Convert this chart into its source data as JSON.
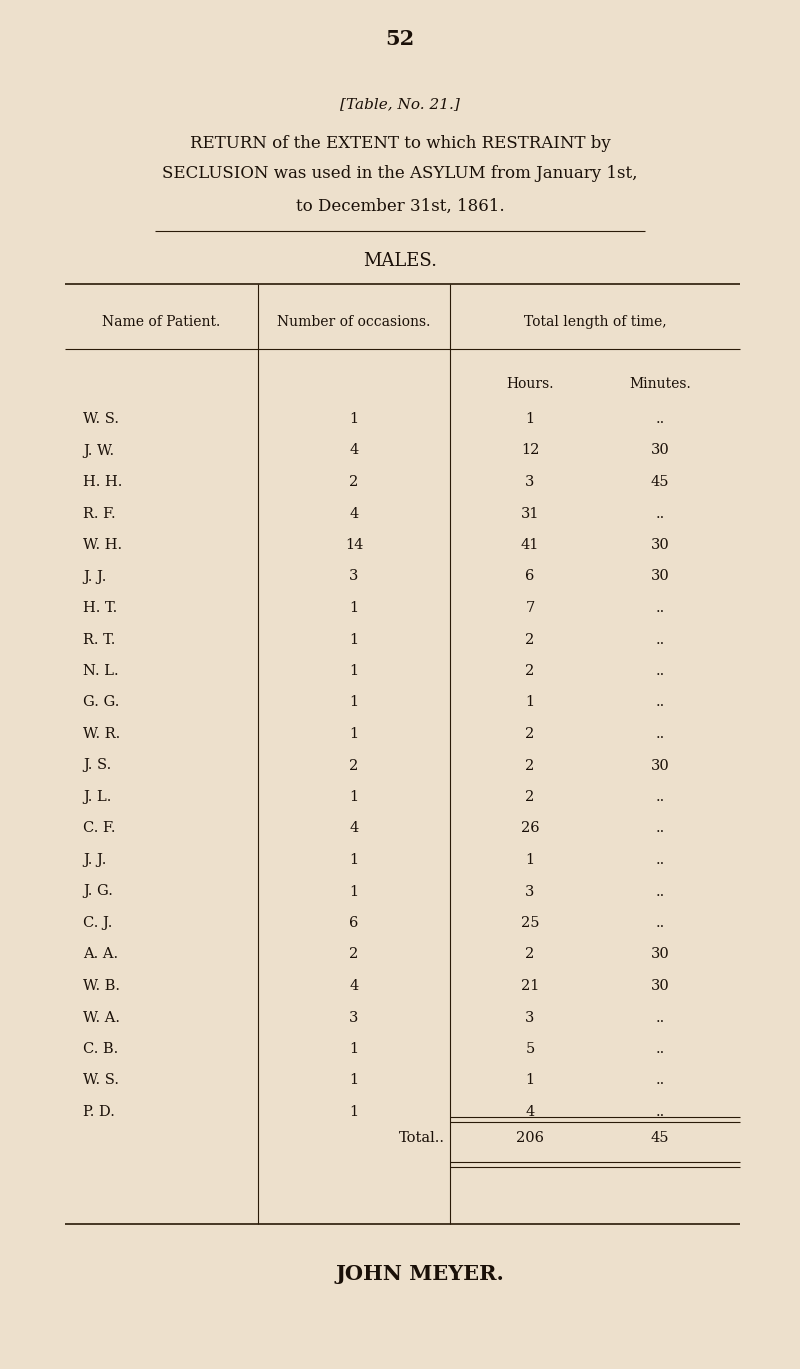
{
  "page_number": "52",
  "table_label": "[Table, No. 21.]",
  "title_line1": "RETURN of the EXTENT to which RESTRAINT by",
  "title_line2": "SECLUSION was used in the ASYLUM from January 1st,",
  "title_line3": "to December 31st, 1861.",
  "section_label": "MALES.",
  "col1_header": "Name of Patient.",
  "col2_header": "Number of occasions.",
  "col3_header": "Total length of time,",
  "sub_col3a": "Hours.",
  "sub_col3b": "Minutes.",
  "rows": [
    [
      "W. S.",
      "1",
      "1",
      ".."
    ],
    [
      "J. W.",
      "4",
      "12",
      "30"
    ],
    [
      "H. H.",
      "2",
      "3",
      "45"
    ],
    [
      "R. F.",
      "4",
      "31",
      ".."
    ],
    [
      "W. H.",
      "14",
      "41",
      "30"
    ],
    [
      "J. J.",
      "3",
      "6",
      "30"
    ],
    [
      "H. T.",
      "1",
      "7",
      ".."
    ],
    [
      "R. T.",
      "1",
      "2",
      ".."
    ],
    [
      "N. L.",
      "1",
      "2",
      ".."
    ],
    [
      "G. G.",
      "1",
      "1",
      ".."
    ],
    [
      "W. R.",
      "1",
      "2",
      ".."
    ],
    [
      "J. S.",
      "2",
      "2",
      "30"
    ],
    [
      "J. L.",
      "1",
      "2",
      ".."
    ],
    [
      "C. F.",
      "4",
      "26",
      ".."
    ],
    [
      "J. J.",
      "1",
      "1",
      ".."
    ],
    [
      "J. G.",
      "1",
      "3",
      ".."
    ],
    [
      "C. J.",
      "6",
      "25",
      ".."
    ],
    [
      "A. A.",
      "2",
      "2",
      "30"
    ],
    [
      "W. B.",
      "4",
      "21",
      "30"
    ],
    [
      "W. A.",
      "3",
      "3",
      ".."
    ],
    [
      "C. B.",
      "1",
      "5",
      ".."
    ],
    [
      "W. S.",
      "1",
      "1",
      ".."
    ],
    [
      "P. D.",
      "1",
      "4",
      ".."
    ]
  ],
  "total_label": "Total..",
  "total_hours": "206",
  "total_minutes": "45",
  "footer": "JOHN MEYER.",
  "bg_color": "#EDE0CC",
  "text_color": "#1a1008",
  "line_color": "#2a1a08"
}
